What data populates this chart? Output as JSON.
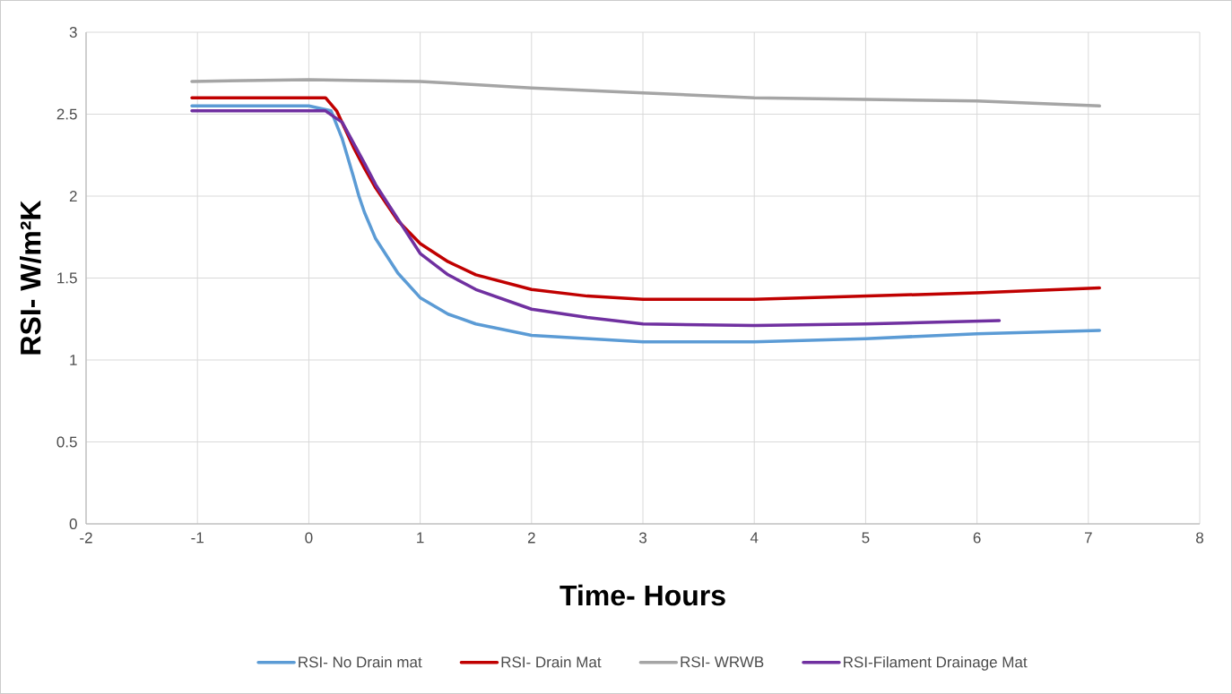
{
  "chart_data": {
    "type": "line",
    "xlabel": "Time- Hours",
    "ylabel": "RSI- W/m²K",
    "xlim": [
      -2,
      8
    ],
    "ylim": [
      0,
      3
    ],
    "xticks": [
      -2,
      -1,
      0,
      1,
      2,
      3,
      4,
      5,
      6,
      7,
      8
    ],
    "yticks": [
      0,
      0.5,
      1,
      1.5,
      2,
      2.5,
      3
    ],
    "grid": true,
    "legend": "bottom",
    "marker": "none",
    "line_style": "solid",
    "series": [
      {
        "name": "RSI- No Drain mat",
        "color": "#5b9bd5",
        "x": [
          -1.05,
          -0.5,
          0,
          0.2,
          0.3,
          0.4,
          0.45,
          0.5,
          0.6,
          0.8,
          1.0,
          1.25,
          1.5,
          2,
          2.5,
          3,
          4,
          5,
          6,
          7.1
        ],
        "values": [
          2.55,
          2.55,
          2.55,
          2.52,
          2.35,
          2.12,
          2.0,
          1.9,
          1.74,
          1.53,
          1.38,
          1.28,
          1.22,
          1.15,
          1.13,
          1.11,
          1.11,
          1.13,
          1.16,
          1.18
        ]
      },
      {
        "name": "RSI- Drain Mat",
        "color": "#c00000",
        "x": [
          -1.05,
          -0.5,
          0,
          0.15,
          0.25,
          0.4,
          0.5,
          0.6,
          0.8,
          1.0,
          1.25,
          1.5,
          2,
          2.5,
          3,
          4,
          5,
          6,
          7.1
        ],
        "values": [
          2.6,
          2.6,
          2.6,
          2.6,
          2.52,
          2.3,
          2.17,
          2.05,
          1.85,
          1.71,
          1.6,
          1.52,
          1.43,
          1.39,
          1.37,
          1.37,
          1.39,
          1.41,
          1.44
        ]
      },
      {
        "name": "RSI- WRWB",
        "color": "#a5a5a5",
        "x": [
          -1.05,
          0,
          1,
          2,
          3,
          4,
          5,
          6,
          7.1
        ],
        "values": [
          2.7,
          2.71,
          2.7,
          2.66,
          2.63,
          2.6,
          2.59,
          2.58,
          2.55
        ]
      },
      {
        "name": "RSI-Filament Drainage Mat",
        "color": "#7030a0",
        "x": [
          -1.05,
          -0.5,
          0,
          0.15,
          0.3,
          0.5,
          0.6,
          0.8,
          1.0,
          1.25,
          1.5,
          2,
          2.5,
          3,
          4,
          5,
          6.2
        ],
        "values": [
          2.52,
          2.52,
          2.52,
          2.52,
          2.45,
          2.2,
          2.07,
          1.86,
          1.65,
          1.52,
          1.43,
          1.31,
          1.26,
          1.22,
          1.21,
          1.22,
          1.24
        ]
      }
    ]
  }
}
